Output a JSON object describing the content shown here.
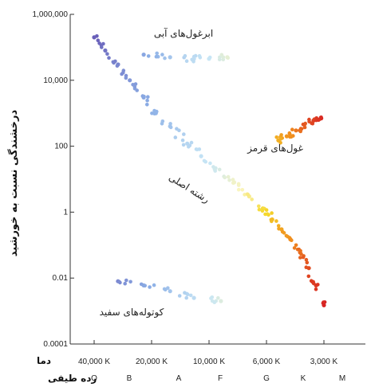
{
  "chart_data": {
    "type": "scatter",
    "title": "",
    "y_label": "درخشندگی نسبت به خورشید",
    "y_scale": "log",
    "ylim": [
      0.0001,
      1000000
    ],
    "y_ticks": [
      "1,000,000",
      "10,000",
      "100",
      "1",
      "0.01",
      "0.0001"
    ],
    "x_axis_inverted": true,
    "x_row_label": "دما",
    "x_ticks": [
      "40,000 K",
      "20,000 K",
      "10,000 K",
      "6,000 K",
      "3,000 K"
    ],
    "spectral_row_label": "رده طیفی",
    "spectral_classes": [
      "O",
      "B",
      "A",
      "F",
      "G",
      "K",
      "M"
    ],
    "grid": false,
    "annotations": {
      "supergiants": "ابرغول‌های آبی",
      "red_giants": "غول‌های قرمز",
      "main_sequence": "رشته اصلی",
      "white_dwarfs": "کوتوله‌های سفید"
    },
    "groups": [
      {
        "name": "main sequence",
        "color_by_temperature": true,
        "points_temperature_luminosity": [
          [
            40000,
            200000
          ],
          [
            35000,
            80000
          ],
          [
            30000,
            30000
          ],
          [
            26000,
            10000
          ],
          [
            22000,
            3000
          ],
          [
            19000,
            1000
          ],
          [
            16000,
            400
          ],
          [
            13000,
            120
          ],
          [
            11000,
            50
          ],
          [
            9500,
            20
          ],
          [
            8000,
            8
          ],
          [
            7000,
            3
          ],
          [
            6200,
            1.3
          ],
          [
            5600,
            0.6
          ],
          [
            5000,
            0.3
          ],
          [
            4500,
            0.15
          ],
          [
            4000,
            0.06
          ],
          [
            3600,
            0.02
          ],
          [
            3300,
            0.006
          ],
          [
            3000,
            0.0015
          ]
        ]
      },
      {
        "name": "blue supergiants",
        "color_by_temperature": true,
        "points_temperature_luminosity": [
          [
            22000,
            60000
          ],
          [
            16000,
            50000
          ],
          [
            12000,
            45000
          ],
          [
            10000,
            45000
          ],
          [
            8500,
            50000
          ]
        ]
      },
      {
        "name": "red giants",
        "color_by_temperature": true,
        "points_temperature_luminosity": [
          [
            5200,
            150
          ],
          [
            4700,
            200
          ],
          [
            4200,
            300
          ],
          [
            3800,
            450
          ],
          [
            3400,
            600
          ],
          [
            3100,
            700
          ]
        ]
      },
      {
        "name": "white dwarfs",
        "color_by_temperature": true,
        "points_temperature_luminosity": [
          [
            30000,
            0.008
          ],
          [
            22000,
            0.006
          ],
          [
            16000,
            0.004
          ],
          [
            12000,
            0.0025
          ],
          [
            9000,
            0.002
          ]
        ]
      }
    ]
  }
}
